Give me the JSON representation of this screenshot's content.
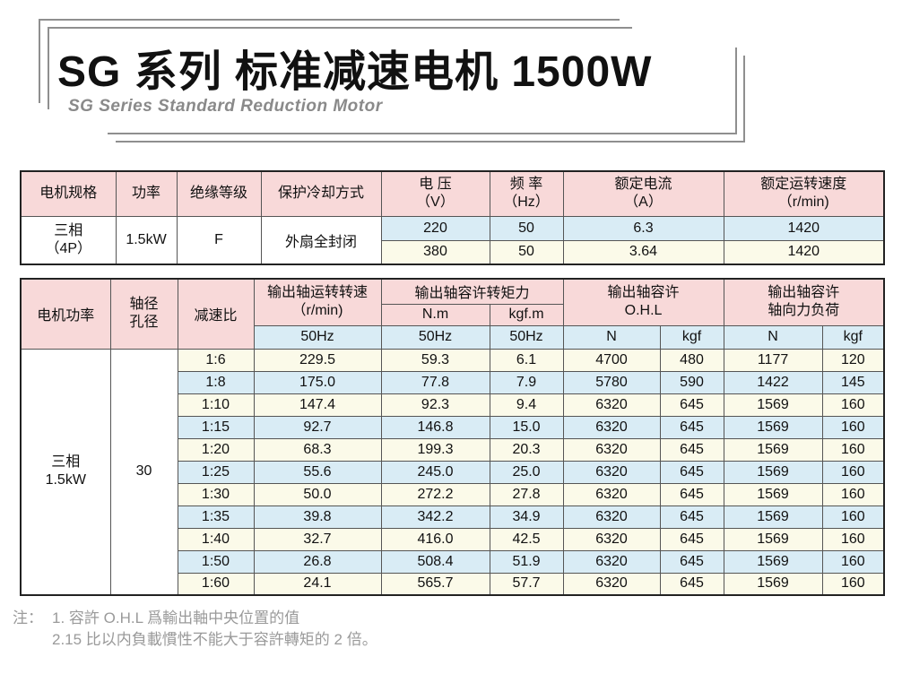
{
  "page": {
    "title": "SG 系列 标准减速电机 1500W",
    "subtitle": "SG Series Standard Reduction Motor"
  },
  "colors": {
    "header_pink": "#f8d9d9",
    "row_blue": "#d9ecf5",
    "row_cream": "#fbfae9",
    "frame_gray": "#8f8f8f",
    "note_gray": "#9a9a9a"
  },
  "spec_table": {
    "headers": {
      "spec": "电机规格",
      "power": "功率",
      "insulation": "绝缘等级",
      "cooling": "保护冷却方式",
      "voltage": "电 压\n（V）",
      "frequency": "频 率\n（Hz）",
      "current": "额定电流\n（A）",
      "speed": "额定运转速度\n（r/min)"
    },
    "merged": {
      "spec": "三相\n（4P）",
      "power": "1.5kW",
      "insulation": "F",
      "cooling": "外扇全封闭"
    },
    "rows": [
      {
        "voltage": "220",
        "frequency": "50",
        "current": "6.3",
        "speed": "1420"
      },
      {
        "voltage": "380",
        "frequency": "50",
        "current": "3.64",
        "speed": "1420"
      }
    ]
  },
  "ratio_table": {
    "headers": {
      "motor_power": "电机功率",
      "shaft_bore": "轴径\n孔径",
      "ratio": "减速比",
      "output_speed": "输出轴运转转速\n（r/min)",
      "torque_group": "输出轴容许转矩力",
      "torque_nm": "N.m",
      "torque_kgfm": "kgf.m",
      "ohl_group": "输出轴容许\nO.H.L",
      "axial_group": "输出轴容许\n轴向力负荷",
      "hz_label": "50Hz",
      "n_label": "N",
      "kgf_label": "kgf"
    },
    "merged": {
      "motor_power": "三相\n1.5kW",
      "shaft_bore": "30"
    },
    "rows": [
      {
        "ratio": "1:6",
        "speed": "229.5",
        "nm": "59.3",
        "kgfm": "6.1",
        "ohl_n": "4700",
        "ohl_kgf": "480",
        "axial_n": "1177",
        "axial_kgf": "120"
      },
      {
        "ratio": "1:8",
        "speed": "175.0",
        "nm": "77.8",
        "kgfm": "7.9",
        "ohl_n": "5780",
        "ohl_kgf": "590",
        "axial_n": "1422",
        "axial_kgf": "145"
      },
      {
        "ratio": "1:10",
        "speed": "147.4",
        "nm": "92.3",
        "kgfm": "9.4",
        "ohl_n": "6320",
        "ohl_kgf": "645",
        "axial_n": "1569",
        "axial_kgf": "160"
      },
      {
        "ratio": "1:15",
        "speed": "92.7",
        "nm": "146.8",
        "kgfm": "15.0",
        "ohl_n": "6320",
        "ohl_kgf": "645",
        "axial_n": "1569",
        "axial_kgf": "160"
      },
      {
        "ratio": "1:20",
        "speed": "68.3",
        "nm": "199.3",
        "kgfm": "20.3",
        "ohl_n": "6320",
        "ohl_kgf": "645",
        "axial_n": "1569",
        "axial_kgf": "160"
      },
      {
        "ratio": "1:25",
        "speed": "55.6",
        "nm": "245.0",
        "kgfm": "25.0",
        "ohl_n": "6320",
        "ohl_kgf": "645",
        "axial_n": "1569",
        "axial_kgf": "160"
      },
      {
        "ratio": "1:30",
        "speed": "50.0",
        "nm": "272.2",
        "kgfm": "27.8",
        "ohl_n": "6320",
        "ohl_kgf": "645",
        "axial_n": "1569",
        "axial_kgf": "160"
      },
      {
        "ratio": "1:35",
        "speed": "39.8",
        "nm": "342.2",
        "kgfm": "34.9",
        "ohl_n": "6320",
        "ohl_kgf": "645",
        "axial_n": "1569",
        "axial_kgf": "160"
      },
      {
        "ratio": "1:40",
        "speed": "32.7",
        "nm": "416.0",
        "kgfm": "42.5",
        "ohl_n": "6320",
        "ohl_kgf": "645",
        "axial_n": "1569",
        "axial_kgf": "160"
      },
      {
        "ratio": "1:50",
        "speed": "26.8",
        "nm": "508.4",
        "kgfm": "51.9",
        "ohl_n": "6320",
        "ohl_kgf": "645",
        "axial_n": "1569",
        "axial_kgf": "160"
      },
      {
        "ratio": "1:60",
        "speed": "24.1",
        "nm": "565.7",
        "kgfm": "57.7",
        "ohl_n": "6320",
        "ohl_kgf": "645",
        "axial_n": "1569",
        "axial_kgf": "160"
      }
    ]
  },
  "notes": {
    "label": "注：",
    "line1": "1. 容許 O.H.L 爲輸出軸中央位置的值",
    "line2": "2.15 比以内負載慣性不能大于容許轉矩的 2 倍。"
  }
}
